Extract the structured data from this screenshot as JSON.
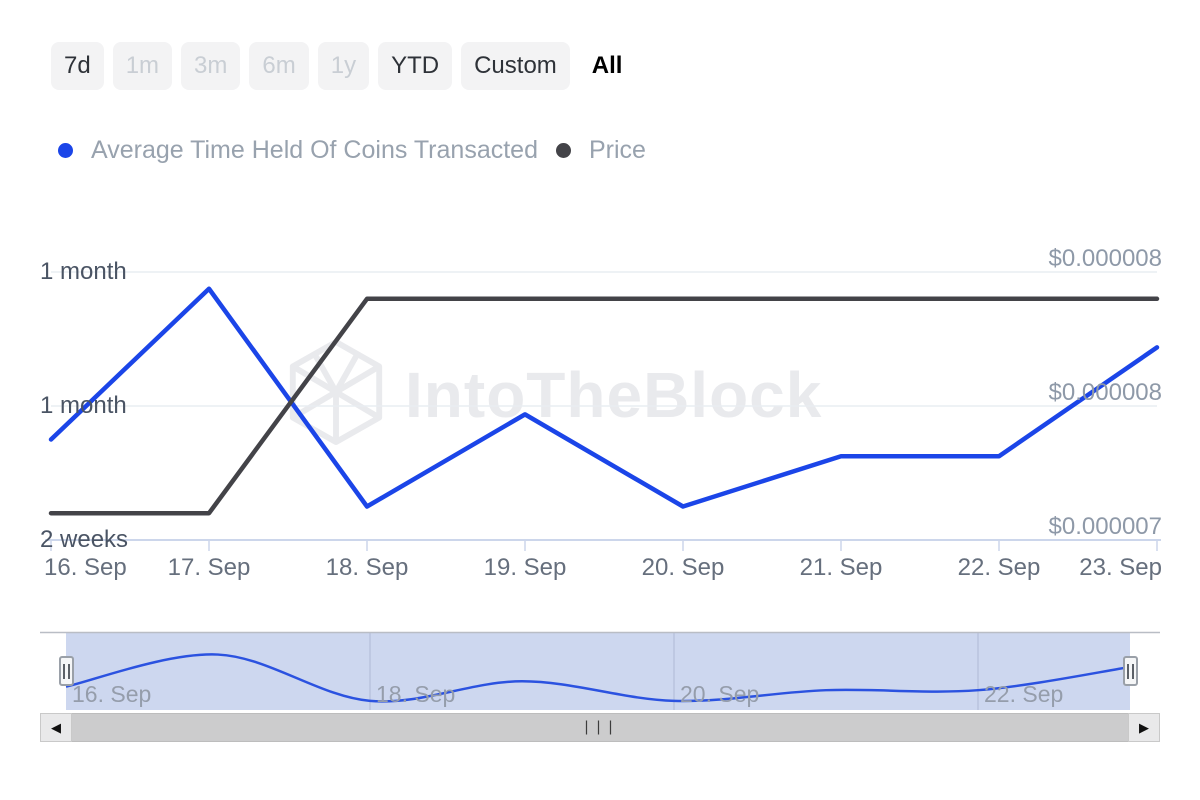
{
  "toolbar": {
    "buttons": [
      {
        "label": "7d",
        "state": "normal"
      },
      {
        "label": "1m",
        "state": "disabled"
      },
      {
        "label": "3m",
        "state": "disabled"
      },
      {
        "label": "6m",
        "state": "disabled"
      },
      {
        "label": "1y",
        "state": "disabled"
      },
      {
        "label": "YTD",
        "state": "normal"
      },
      {
        "label": "Custom",
        "state": "normal"
      },
      {
        "label": "All",
        "state": "selected"
      }
    ]
  },
  "legend": {
    "items": [
      {
        "label": "Average Time Held Of Coins Transacted",
        "color": "#1b45e8"
      },
      {
        "label": "Price",
        "color": "#434348"
      }
    ]
  },
  "chart_data": {
    "type": "line",
    "title": "",
    "watermark": "IntoTheBlock",
    "categories": [
      "16. Sep",
      "17. Sep",
      "18. Sep",
      "19. Sep",
      "20. Sep",
      "21. Sep",
      "22. Sep",
      "23. Sep"
    ],
    "series": [
      {
        "name": "Average Time Held Of Coins Transacted",
        "color": "#1b45e8",
        "yaxis": "left",
        "unit": "days_held",
        "values": [
          26,
          44,
          18,
          29,
          18,
          24,
          24,
          37
        ]
      },
      {
        "name": "Price",
        "color": "#434348",
        "yaxis": "right",
        "unit": "usd",
        "values": [
          7.1e-06,
          7.1e-06,
          7.9e-06,
          7.9e-06,
          7.9e-06,
          7.9e-06,
          7.9e-06,
          7.9e-06
        ]
      }
    ],
    "yaxis_left": {
      "tick_labels": [
        "1 month",
        "1 month",
        "2 weeks"
      ],
      "tick_values_days": [
        46,
        30,
        14
      ],
      "min_days": 14,
      "max_days": 46
    },
    "yaxis_right": {
      "tick_labels": [
        "$0.000008",
        "$0.000008",
        "$0.000007"
      ],
      "tick_values_usd": [
        8e-06,
        7.5e-06,
        7e-06
      ],
      "min_usd": 7e-06,
      "max_usd": 8e-06
    },
    "xaxis": {
      "tick_labels": [
        "16. Sep",
        "17. Sep",
        "18. Sep",
        "19. Sep",
        "20. Sep",
        "21. Sep",
        "22. Sep",
        "23. Sep"
      ]
    },
    "grid": "horizontal",
    "legend_position": "top-left"
  },
  "navigator": {
    "labels": [
      "16. Sep",
      "18. Sep",
      "20. Sep",
      "22. Sep"
    ],
    "selected_range": "all",
    "mask_color": "#cdd7ef",
    "line_color": "#2b52e0"
  },
  "scrollbar": {
    "grip": "|||",
    "left_arrow": "◀",
    "right_arrow": "▶"
  }
}
